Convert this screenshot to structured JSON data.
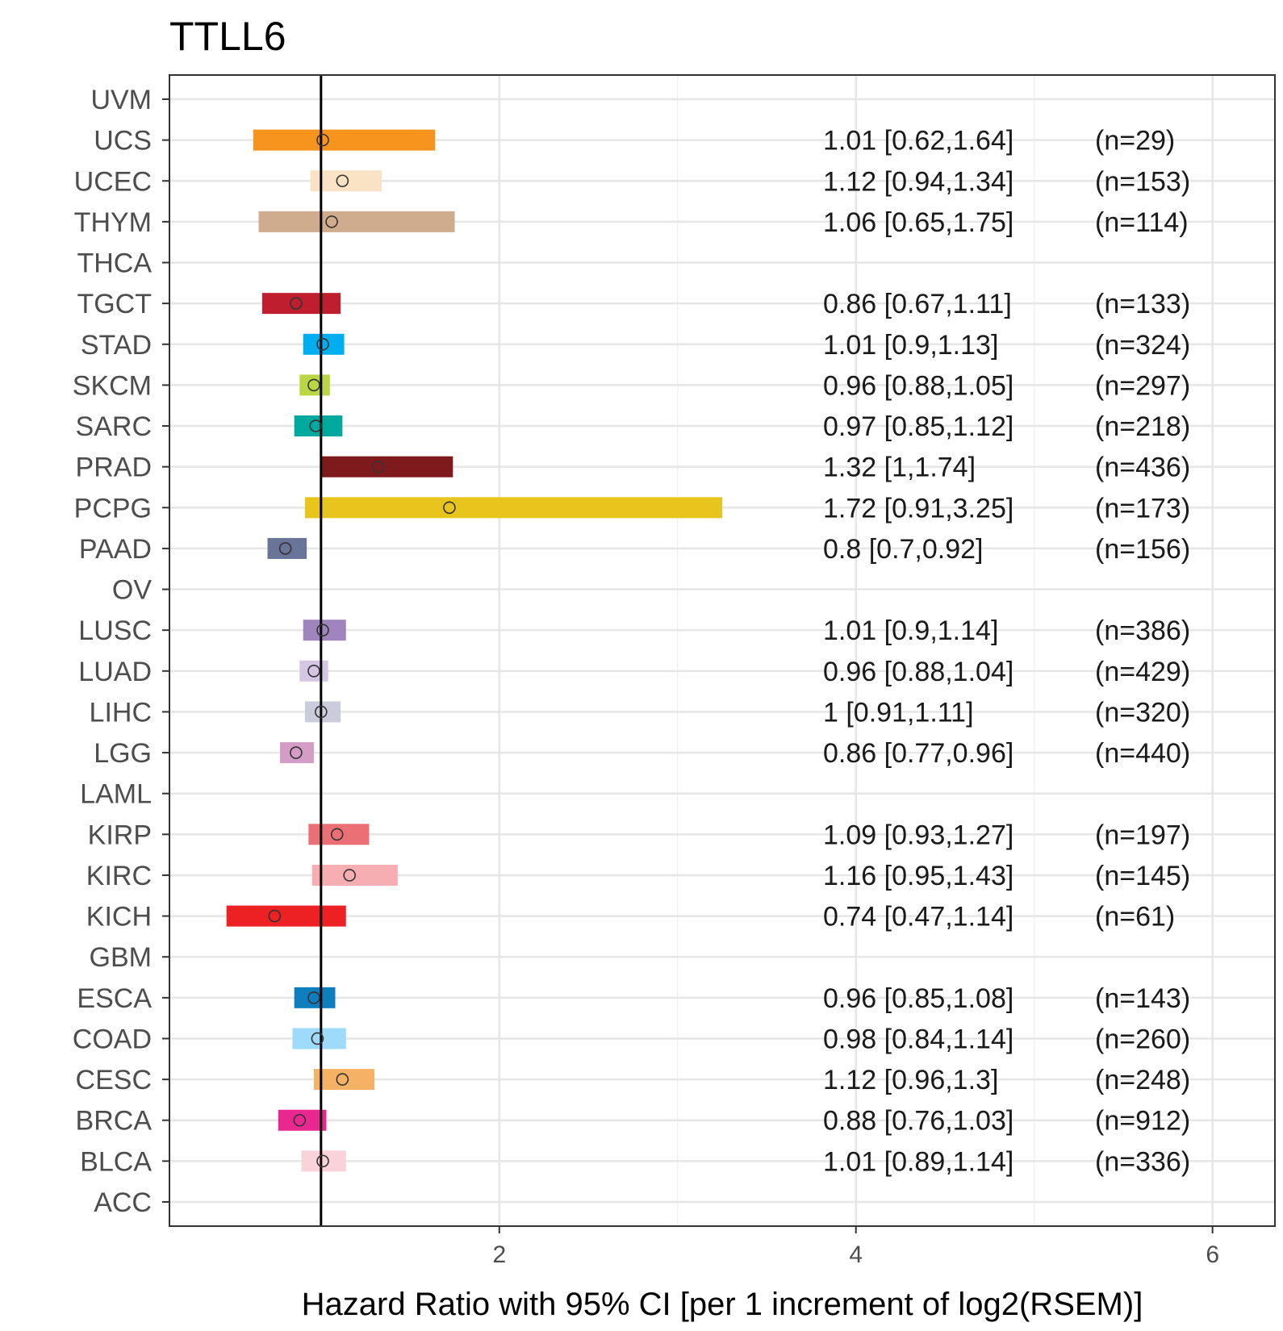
{
  "chart_data": {
    "type": "forest",
    "title": "TTLL6",
    "xlabel": "Hazard Ratio with 95% CI [per 1 increment of log2(RSEM)]",
    "ylabel": "",
    "xlim": [
      0.15,
      6.35
    ],
    "xticks": [
      2,
      4,
      6
    ],
    "xtick_labels": [
      "2",
      "4",
      "6"
    ],
    "reference_line": 1,
    "grid": true,
    "categories": [
      "UVM",
      "UCS",
      "UCEC",
      "THYM",
      "THCA",
      "TGCT",
      "STAD",
      "SKCM",
      "SARC",
      "PRAD",
      "PCPG",
      "PAAD",
      "OV",
      "LUSC",
      "LUAD",
      "LIHC",
      "LGG",
      "LAML",
      "KIRP",
      "KIRC",
      "KICH",
      "GBM",
      "ESCA",
      "COAD",
      "CESC",
      "BRCA",
      "BLCA",
      "ACC"
    ],
    "rows": [
      {
        "cancer": "UVM"
      },
      {
        "cancer": "UCS",
        "hr": 1.01,
        "low": 0.62,
        "high": 1.64,
        "label": "1.01 [0.62,1.64]",
        "n": "(n=29)",
        "color": "#F7941D"
      },
      {
        "cancer": "UCEC",
        "hr": 1.12,
        "low": 0.94,
        "high": 1.34,
        "label": "1.12 [0.94,1.34]",
        "n": "(n=153)",
        "color": "#FAE2C4"
      },
      {
        "cancer": "THYM",
        "hr": 1.06,
        "low": 0.65,
        "high": 1.75,
        "label": "1.06 [0.65,1.75]",
        "n": "(n=114)",
        "color": "#D0AC8F"
      },
      {
        "cancer": "THCA"
      },
      {
        "cancer": "TGCT",
        "hr": 0.86,
        "low": 0.67,
        "high": 1.11,
        "label": "0.86 [0.67,1.11]",
        "n": "(n=133)",
        "color": "#BE1E2D"
      },
      {
        "cancer": "STAD",
        "hr": 1.01,
        "low": 0.9,
        "high": 1.13,
        "label": "1.01 [0.9,1.13]",
        "n": "(n=324)",
        "color": "#00AEEF"
      },
      {
        "cancer": "SKCM",
        "hr": 0.96,
        "low": 0.88,
        "high": 1.05,
        "label": "0.96 [0.88,1.05]",
        "n": "(n=297)",
        "color": "#BBD643"
      },
      {
        "cancer": "SARC",
        "hr": 0.97,
        "low": 0.85,
        "high": 1.12,
        "label": "0.97 [0.85,1.12]",
        "n": "(n=218)",
        "color": "#00A99D"
      },
      {
        "cancer": "PRAD",
        "hr": 1.32,
        "low": 1,
        "high": 1.74,
        "label": "1.32 [1,1.74]",
        "n": "(n=436)",
        "color": "#7F1A1C"
      },
      {
        "cancer": "PCPG",
        "hr": 1.72,
        "low": 0.91,
        "high": 3.25,
        "label": "1.72 [0.91,3.25]",
        "n": "(n=173)",
        "color": "#E8C51D"
      },
      {
        "cancer": "PAAD",
        "hr": 0.8,
        "low": 0.7,
        "high": 0.92,
        "label": "0.8 [0.7,0.92]",
        "n": "(n=156)",
        "color": "#6A7398"
      },
      {
        "cancer": "OV"
      },
      {
        "cancer": "LUSC",
        "hr": 1.01,
        "low": 0.9,
        "high": 1.14,
        "label": "1.01 [0.9,1.14]",
        "n": "(n=386)",
        "color": "#A084BD"
      },
      {
        "cancer": "LUAD",
        "hr": 0.96,
        "low": 0.88,
        "high": 1.04,
        "label": "0.96 [0.88,1.04]",
        "n": "(n=429)",
        "color": "#D5C6E3"
      },
      {
        "cancer": "LIHC",
        "hr": 1,
        "low": 0.91,
        "high": 1.11,
        "label": "1 [0.91,1.11]",
        "n": "(n=320)",
        "color": "#CACCDB"
      },
      {
        "cancer": "LGG",
        "hr": 0.86,
        "low": 0.77,
        "high": 0.96,
        "label": "0.86 [0.77,0.96]",
        "n": "(n=440)",
        "color": "#D49DC7"
      },
      {
        "cancer": "LAML"
      },
      {
        "cancer": "KIRP",
        "hr": 1.09,
        "low": 0.93,
        "high": 1.27,
        "label": "1.09 [0.93,1.27]",
        "n": "(n=197)",
        "color": "#EA7075"
      },
      {
        "cancer": "KIRC",
        "hr": 1.16,
        "low": 0.95,
        "high": 1.43,
        "label": "1.16 [0.95,1.43]",
        "n": "(n=145)",
        "color": "#F6AEB2"
      },
      {
        "cancer": "KICH",
        "hr": 0.74,
        "low": 0.47,
        "high": 1.14,
        "label": "0.74 [0.47,1.14]",
        "n": "(n=61)",
        "color": "#ED2024"
      },
      {
        "cancer": "GBM"
      },
      {
        "cancer": "ESCA",
        "hr": 0.96,
        "low": 0.85,
        "high": 1.08,
        "label": "0.96 [0.85,1.08]",
        "n": "(n=143)",
        "color": "#0F7EBF"
      },
      {
        "cancer": "COAD",
        "hr": 0.98,
        "low": 0.84,
        "high": 1.14,
        "label": "0.98 [0.84,1.14]",
        "n": "(n=260)",
        "color": "#9EDAF9"
      },
      {
        "cancer": "CESC",
        "hr": 1.12,
        "low": 0.96,
        "high": 1.3,
        "label": "1.12 [0.96,1.3]",
        "n": "(n=248)",
        "color": "#F5B264"
      },
      {
        "cancer": "BRCA",
        "hr": 0.88,
        "low": 0.76,
        "high": 1.03,
        "label": "0.88 [0.76,1.03]",
        "n": "(n=912)",
        "color": "#E8288F"
      },
      {
        "cancer": "BLCA",
        "hr": 1.01,
        "low": 0.89,
        "high": 1.14,
        "label": "1.01 [0.89,1.14]",
        "n": "(n=336)",
        "color": "#F9D2DA"
      },
      {
        "cancer": "ACC"
      }
    ]
  }
}
